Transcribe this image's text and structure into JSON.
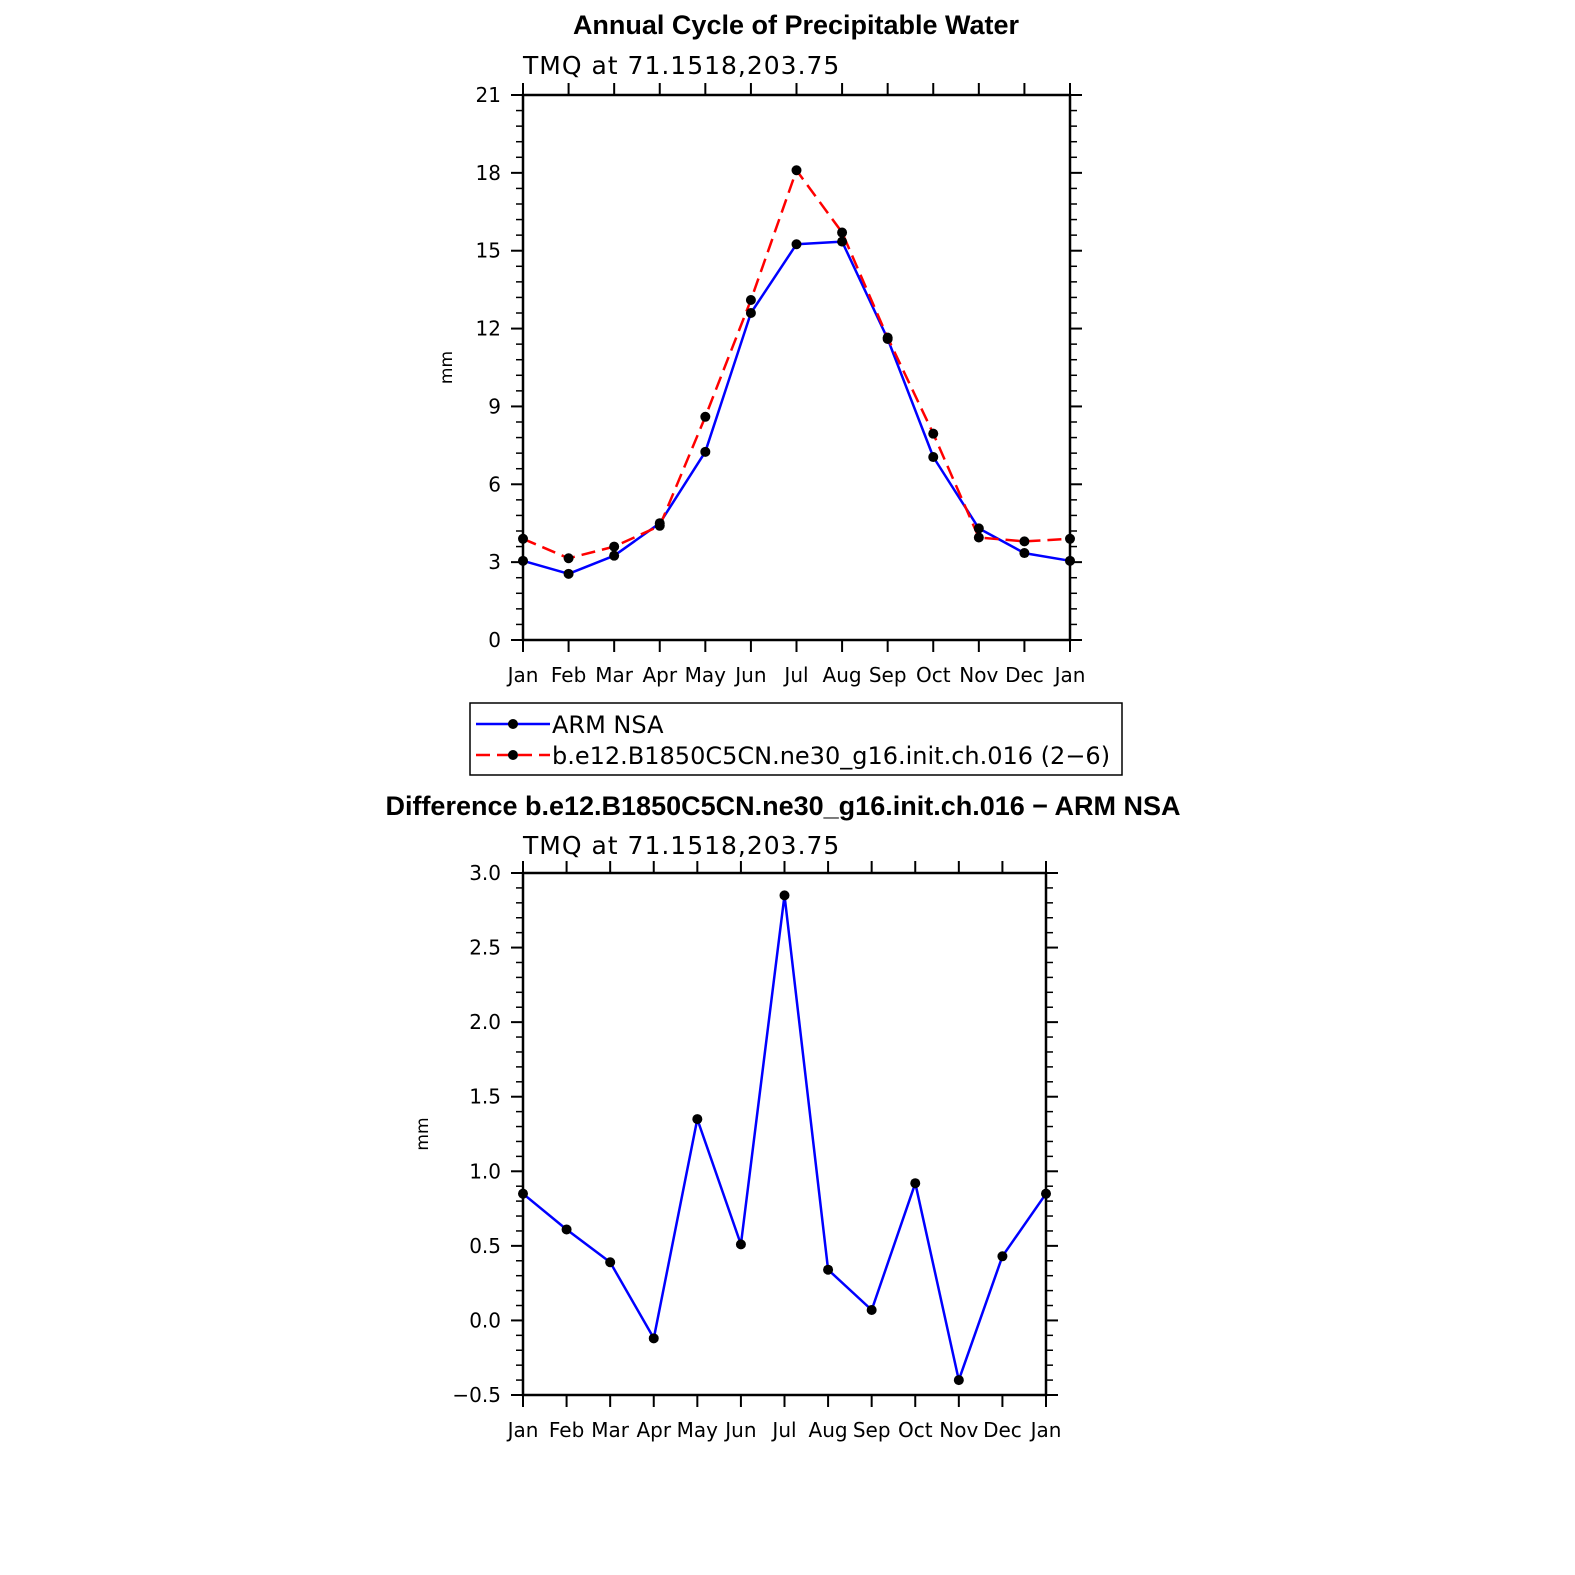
{
  "chart_data": [
    {
      "type": "line",
      "title": "Annual Cycle of Precipitable Water",
      "subtitle": "TMQ at 71.1518,203.75",
      "xlabel": "",
      "ylabel": "mm",
      "categories": [
        "Jan",
        "Feb",
        "Mar",
        "Apr",
        "May",
        "Jun",
        "Jul",
        "Aug",
        "Sep",
        "Oct",
        "Nov",
        "Dec",
        "Jan"
      ],
      "ylim": [
        0,
        21
      ],
      "yticks": [
        "0",
        "3",
        "6",
        "9",
        "12",
        "15",
        "18",
        "21"
      ],
      "series": [
        {
          "name": "ARM NSA",
          "color": "#0000ff",
          "dash": "solid",
          "values": [
            3.05,
            2.55,
            3.25,
            4.5,
            7.25,
            12.6,
            15.25,
            15.35,
            11.6,
            7.05,
            4.3,
            3.35,
            3.05
          ]
        },
        {
          "name": "b.e12.B1850C5CN.ne30_g16.init.ch.016 (2-6)",
          "color": "#ff0000",
          "dash": "dashed",
          "values": [
            3.9,
            3.15,
            3.6,
            4.4,
            8.6,
            13.1,
            18.1,
            15.7,
            11.65,
            7.95,
            3.95,
            3.8,
            3.9
          ]
        }
      ],
      "legend": "below"
    },
    {
      "type": "line",
      "title": "Difference b.e12.B1850C5CN.ne30_g16.init.ch.016 - ARM NSA",
      "subtitle": "TMQ at 71.1518,203.75",
      "xlabel": "",
      "ylabel": "mm",
      "categories": [
        "Jan",
        "Feb",
        "Mar",
        "Apr",
        "May",
        "Jun",
        "Jul",
        "Aug",
        "Sep",
        "Oct",
        "Nov",
        "Dec",
        "Jan"
      ],
      "ylim": [
        -0.5,
        3.0
      ],
      "yticks": [
        "-0.5",
        "0.0",
        "0.5",
        "1.0",
        "1.5",
        "2.0",
        "2.5",
        "3.0"
      ],
      "series": [
        {
          "color": "#0000ff",
          "dash": "solid",
          "values": [
            0.85,
            0.61,
            0.39,
            -0.12,
            1.35,
            0.51,
            2.85,
            0.34,
            0.07,
            0.92,
            -0.4,
            0.43,
            0.85
          ]
        }
      ]
    }
  ]
}
